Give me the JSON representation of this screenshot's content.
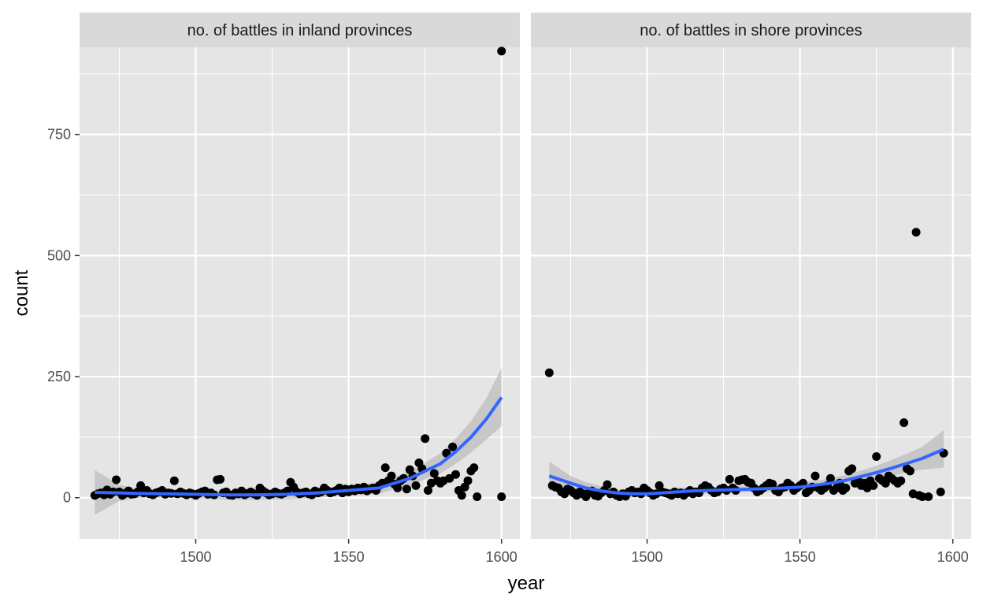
{
  "chart_data": {
    "type": "scatter",
    "xlabel": "year",
    "ylabel": "count",
    "xlim": [
      1462,
      1606
    ],
    "ylim": [
      -85,
      930
    ],
    "x_ticks": [
      1500,
      1550,
      1600
    ],
    "y_ticks": [
      0,
      250,
      500,
      750
    ],
    "grid": true,
    "colors": {
      "panel_background": "#e5e5e5",
      "strip_background": "#d9d9d9",
      "grid": "#ffffff",
      "points": "#000000",
      "smooth_line": "#3366ff",
      "confidence_band": "#b3b3b3"
    },
    "panels": [
      {
        "title": "no. of battles in inland provinces",
        "points": [
          [
            1467,
            5
          ],
          [
            1468,
            8
          ],
          [
            1469,
            10
          ],
          [
            1470,
            6
          ],
          [
            1471,
            16
          ],
          [
            1472,
            7
          ],
          [
            1473,
            12
          ],
          [
            1474,
            37
          ],
          [
            1475,
            12
          ],
          [
            1476,
            5
          ],
          [
            1477,
            9
          ],
          [
            1478,
            14
          ],
          [
            1479,
            7
          ],
          [
            1480,
            8
          ],
          [
            1481,
            12
          ],
          [
            1482,
            25
          ],
          [
            1483,
            10
          ],
          [
            1484,
            15
          ],
          [
            1485,
            8
          ],
          [
            1486,
            6
          ],
          [
            1487,
            10
          ],
          [
            1488,
            12
          ],
          [
            1489,
            15
          ],
          [
            1490,
            7
          ],
          [
            1491,
            10
          ],
          [
            1492,
            9
          ],
          [
            1493,
            35
          ],
          [
            1494,
            8
          ],
          [
            1495,
            12
          ],
          [
            1496,
            9
          ],
          [
            1497,
            6
          ],
          [
            1498,
            10
          ],
          [
            1499,
            8
          ],
          [
            1500,
            5
          ],
          [
            1501,
            9
          ],
          [
            1502,
            12
          ],
          [
            1503,
            14
          ],
          [
            1504,
            7
          ],
          [
            1505,
            10
          ],
          [
            1506,
            6
          ],
          [
            1507,
            37
          ],
          [
            1508,
            38
          ],
          [
            1509,
            10
          ],
          [
            1510,
            12
          ],
          [
            1511,
            6
          ],
          [
            1512,
            5
          ],
          [
            1513,
            10
          ],
          [
            1514,
            8
          ],
          [
            1515,
            14
          ],
          [
            1516,
            6
          ],
          [
            1517,
            9
          ],
          [
            1518,
            12
          ],
          [
            1519,
            8
          ],
          [
            1520,
            5
          ],
          [
            1521,
            20
          ],
          [
            1522,
            14
          ],
          [
            1523,
            10
          ],
          [
            1524,
            6
          ],
          [
            1525,
            8
          ],
          [
            1526,
            12
          ],
          [
            1527,
            9
          ],
          [
            1528,
            7
          ],
          [
            1529,
            10
          ],
          [
            1530,
            14
          ],
          [
            1531,
            32
          ],
          [
            1532,
            22
          ],
          [
            1533,
            12
          ],
          [
            1534,
            8
          ],
          [
            1535,
            10
          ],
          [
            1536,
            12
          ],
          [
            1537,
            8
          ],
          [
            1538,
            6
          ],
          [
            1539,
            14
          ],
          [
            1540,
            10
          ],
          [
            1541,
            12
          ],
          [
            1542,
            20
          ],
          [
            1543,
            15
          ],
          [
            1544,
            10
          ],
          [
            1545,
            12
          ],
          [
            1546,
            15
          ],
          [
            1547,
            20
          ],
          [
            1548,
            10
          ],
          [
            1549,
            18
          ],
          [
            1550,
            12
          ],
          [
            1551,
            18
          ],
          [
            1552,
            14
          ],
          [
            1553,
            20
          ],
          [
            1554,
            16
          ],
          [
            1555,
            22
          ],
          [
            1556,
            14
          ],
          [
            1557,
            18
          ],
          [
            1558,
            20
          ],
          [
            1559,
            15
          ],
          [
            1560,
            25
          ],
          [
            1561,
            30
          ],
          [
            1562,
            62
          ],
          [
            1563,
            35
          ],
          [
            1564,
            45
          ],
          [
            1565,
            28
          ],
          [
            1566,
            20
          ],
          [
            1567,
            35
          ],
          [
            1568,
            40
          ],
          [
            1569,
            18
          ],
          [
            1570,
            58
          ],
          [
            1571,
            45
          ],
          [
            1572,
            25
          ],
          [
            1573,
            72
          ],
          [
            1574,
            60
          ],
          [
            1575,
            122
          ],
          [
            1576,
            15
          ],
          [
            1577,
            30
          ],
          [
            1578,
            50
          ],
          [
            1579,
            35
          ],
          [
            1580,
            30
          ],
          [
            1581,
            35
          ],
          [
            1582,
            92
          ],
          [
            1583,
            40
          ],
          [
            1584,
            105
          ],
          [
            1585,
            48
          ],
          [
            1586,
            15
          ],
          [
            1587,
            5
          ],
          [
            1588,
            22
          ],
          [
            1589,
            35
          ],
          [
            1590,
            55
          ],
          [
            1591,
            62
          ],
          [
            1592,
            2
          ],
          [
            1600,
            2
          ],
          [
            1600,
            922
          ]
        ],
        "smooth": [
          [
            1467,
            11,
            -35,
            57
          ],
          [
            1475,
            10,
            -7,
            27
          ],
          [
            1480,
            9,
            -1,
            20
          ],
          [
            1490,
            8,
            0,
            16
          ],
          [
            1500,
            7,
            -1,
            15
          ],
          [
            1510,
            6,
            -4,
            15
          ],
          [
            1520,
            6,
            -4,
            15
          ],
          [
            1530,
            7,
            -3,
            17
          ],
          [
            1540,
            10,
            0,
            20
          ],
          [
            1550,
            15,
            5,
            25
          ],
          [
            1560,
            20,
            8,
            32
          ],
          [
            1565,
            30,
            18,
            42
          ],
          [
            1570,
            40,
            26,
            55
          ],
          [
            1575,
            55,
            38,
            72
          ],
          [
            1580,
            70,
            50,
            92
          ],
          [
            1585,
            95,
            70,
            122
          ],
          [
            1590,
            125,
            93,
            158
          ],
          [
            1595,
            162,
            120,
            205
          ],
          [
            1600,
            207,
            148,
            268
          ]
        ]
      },
      {
        "title": "no. of battles in shore provinces",
        "points": [
          [
            1468,
            258
          ],
          [
            1469,
            25
          ],
          [
            1470,
            22
          ],
          [
            1471,
            20
          ],
          [
            1472,
            12
          ],
          [
            1473,
            8
          ],
          [
            1474,
            18
          ],
          [
            1475,
            15
          ],
          [
            1476,
            10
          ],
          [
            1477,
            5
          ],
          [
            1478,
            12
          ],
          [
            1479,
            8
          ],
          [
            1480,
            2
          ],
          [
            1481,
            10
          ],
          [
            1482,
            14
          ],
          [
            1483,
            5
          ],
          [
            1484,
            3
          ],
          [
            1485,
            10
          ],
          [
            1486,
            15
          ],
          [
            1487,
            27
          ],
          [
            1488,
            8
          ],
          [
            1489,
            12
          ],
          [
            1490,
            5
          ],
          [
            1491,
            2
          ],
          [
            1492,
            8
          ],
          [
            1493,
            3
          ],
          [
            1494,
            12
          ],
          [
            1495,
            15
          ],
          [
            1496,
            10
          ],
          [
            1497,
            12
          ],
          [
            1498,
            8
          ],
          [
            1499,
            20
          ],
          [
            1500,
            15
          ],
          [
            1501,
            10
          ],
          [
            1502,
            5
          ],
          [
            1503,
            8
          ],
          [
            1504,
            25
          ],
          [
            1505,
            12
          ],
          [
            1506,
            10
          ],
          [
            1507,
            8
          ],
          [
            1508,
            5
          ],
          [
            1509,
            12
          ],
          [
            1510,
            8
          ],
          [
            1511,
            10
          ],
          [
            1512,
            5
          ],
          [
            1513,
            10
          ],
          [
            1514,
            15
          ],
          [
            1515,
            8
          ],
          [
            1516,
            12
          ],
          [
            1517,
            10
          ],
          [
            1518,
            20
          ],
          [
            1519,
            25
          ],
          [
            1520,
            22
          ],
          [
            1521,
            15
          ],
          [
            1522,
            10
          ],
          [
            1523,
            12
          ],
          [
            1524,
            18
          ],
          [
            1525,
            20
          ],
          [
            1526,
            15
          ],
          [
            1527,
            38
          ],
          [
            1528,
            20
          ],
          [
            1529,
            15
          ],
          [
            1530,
            35
          ],
          [
            1531,
            37
          ],
          [
            1532,
            38
          ],
          [
            1533,
            32
          ],
          [
            1534,
            30
          ],
          [
            1535,
            20
          ],
          [
            1536,
            12
          ],
          [
            1537,
            15
          ],
          [
            1538,
            20
          ],
          [
            1539,
            25
          ],
          [
            1540,
            30
          ],
          [
            1541,
            28
          ],
          [
            1542,
            15
          ],
          [
            1543,
            12
          ],
          [
            1544,
            20
          ],
          [
            1545,
            22
          ],
          [
            1546,
            30
          ],
          [
            1547,
            25
          ],
          [
            1548,
            15
          ],
          [
            1549,
            20
          ],
          [
            1550,
            25
          ],
          [
            1551,
            30
          ],
          [
            1552,
            10
          ],
          [
            1553,
            15
          ],
          [
            1554,
            22
          ],
          [
            1555,
            45
          ],
          [
            1556,
            20
          ],
          [
            1557,
            15
          ],
          [
            1558,
            20
          ],
          [
            1559,
            25
          ],
          [
            1560,
            40
          ],
          [
            1561,
            15
          ],
          [
            1562,
            20
          ],
          [
            1563,
            30
          ],
          [
            1564,
            15
          ],
          [
            1565,
            20
          ],
          [
            1566,
            55
          ],
          [
            1567,
            60
          ],
          [
            1568,
            30
          ],
          [
            1569,
            35
          ],
          [
            1570,
            25
          ],
          [
            1571,
            30
          ],
          [
            1572,
            20
          ],
          [
            1573,
            35
          ],
          [
            1574,
            25
          ],
          [
            1575,
            85
          ],
          [
            1576,
            40
          ],
          [
            1577,
            35
          ],
          [
            1578,
            30
          ],
          [
            1579,
            45
          ],
          [
            1580,
            40
          ],
          [
            1581,
            35
          ],
          [
            1582,
            30
          ],
          [
            1583,
            35
          ],
          [
            1584,
            155
          ],
          [
            1585,
            60
          ],
          [
            1586,
            55
          ],
          [
            1587,
            8
          ],
          [
            1588,
            548
          ],
          [
            1589,
            5
          ],
          [
            1590,
            2
          ],
          [
            1592,
            2
          ],
          [
            1596,
            12
          ],
          [
            1597,
            92
          ]
        ],
        "smooth": [
          [
            1468,
            45,
            15,
            75
          ],
          [
            1475,
            30,
            12,
            45
          ],
          [
            1480,
            20,
            10,
            32
          ],
          [
            1485,
            14,
            6,
            24
          ],
          [
            1490,
            10,
            2,
            18
          ],
          [
            1495,
            8,
            0,
            16
          ],
          [
            1500,
            8,
            1,
            16
          ],
          [
            1505,
            10,
            3,
            18
          ],
          [
            1510,
            12,
            6,
            20
          ],
          [
            1515,
            14,
            8,
            22
          ],
          [
            1520,
            15,
            9,
            22
          ],
          [
            1525,
            16,
            10,
            23
          ],
          [
            1530,
            17,
            11,
            24
          ],
          [
            1535,
            18,
            12,
            25
          ],
          [
            1540,
            19,
            12,
            26
          ],
          [
            1545,
            20,
            13,
            28
          ],
          [
            1550,
            22,
            14,
            30
          ],
          [
            1555,
            26,
            18,
            35
          ],
          [
            1560,
            30,
            21,
            40
          ],
          [
            1565,
            36,
            26,
            47
          ],
          [
            1570,
            44,
            32,
            56
          ],
          [
            1575,
            52,
            38,
            66
          ],
          [
            1580,
            61,
            45,
            78
          ],
          [
            1585,
            71,
            52,
            91
          ],
          [
            1590,
            81,
            58,
            105
          ],
          [
            1597,
            100,
            62,
            140
          ]
        ]
      }
    ]
  }
}
